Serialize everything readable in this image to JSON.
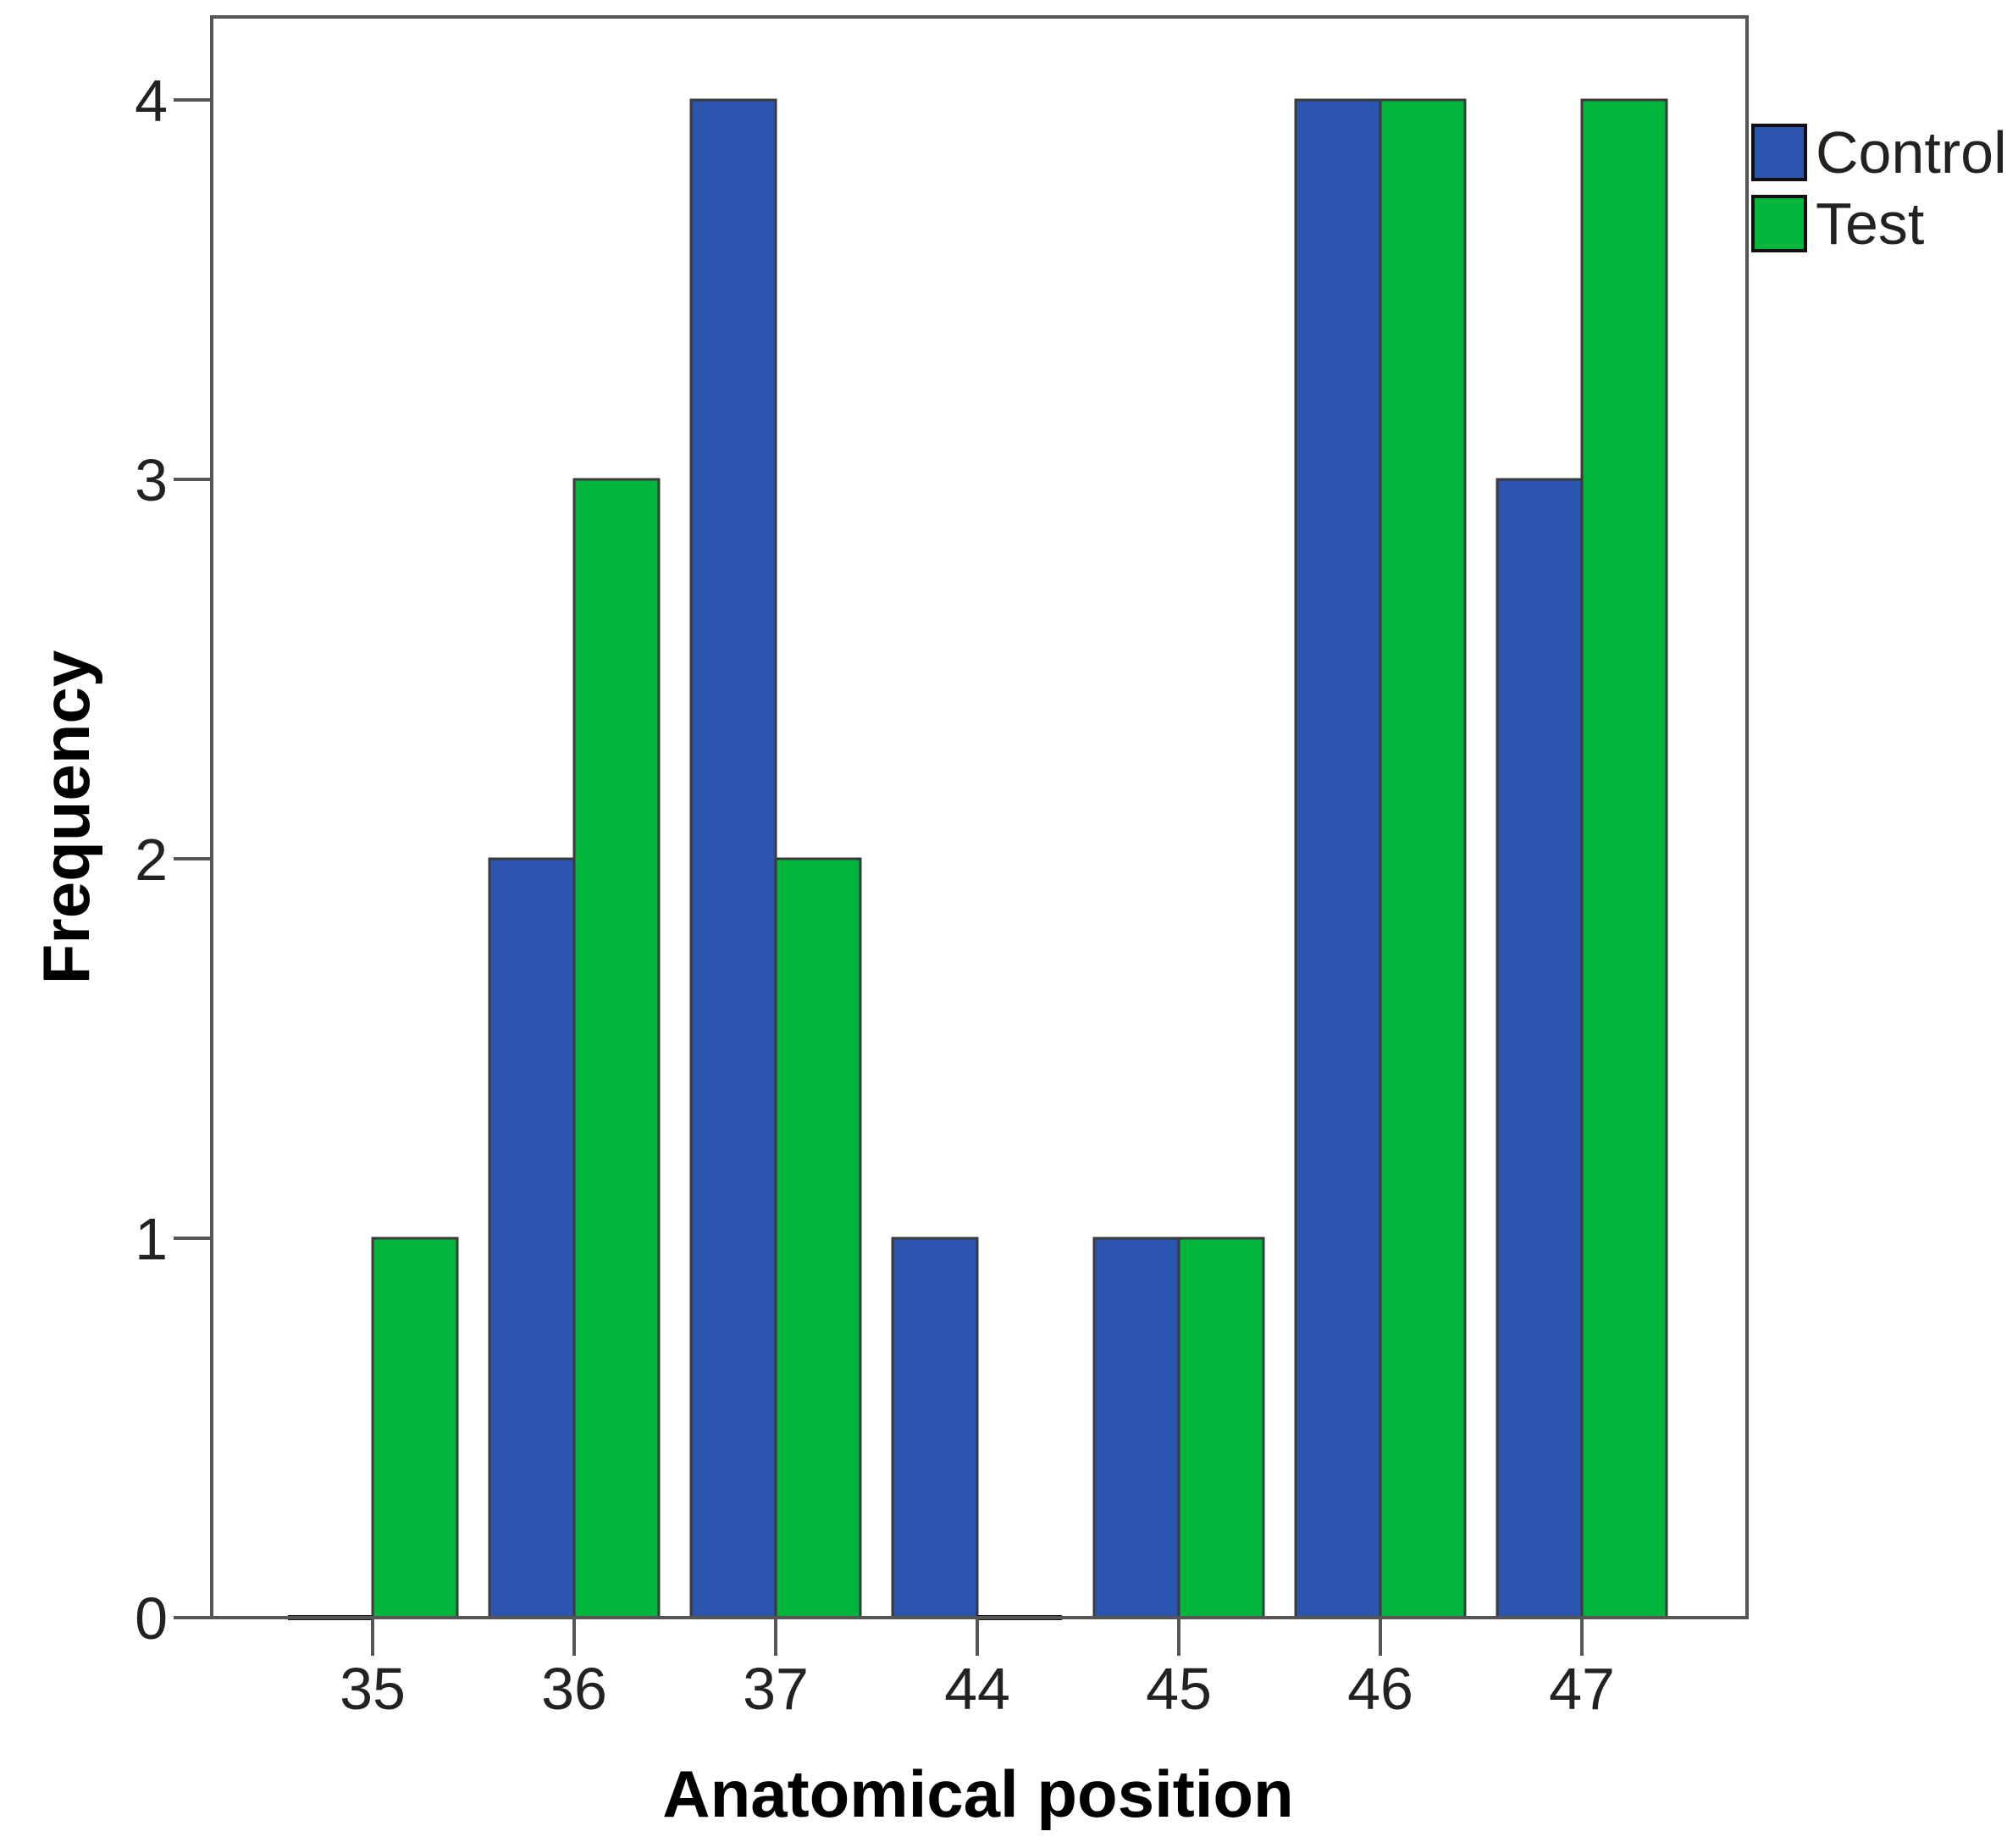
{
  "chart_data": {
    "type": "bar",
    "title": "",
    "xlabel": "Anatomical position",
    "ylabel": "Frequency",
    "categories": [
      "35",
      "36",
      "37",
      "44",
      "45",
      "46",
      "47"
    ],
    "series": [
      {
        "name": "Control",
        "color": "#2B55AF",
        "values": [
          0,
          2,
          4,
          1,
          1,
          4,
          3
        ]
      },
      {
        "name": "Test",
        "color": "#00B43C",
        "values": [
          1,
          3,
          2,
          0,
          1,
          4,
          4
        ]
      }
    ],
    "ylim": [
      0,
      4.2
    ],
    "yticks": [
      0,
      1,
      2,
      3,
      4
    ],
    "grid": false,
    "legend_position": "top-right"
  }
}
